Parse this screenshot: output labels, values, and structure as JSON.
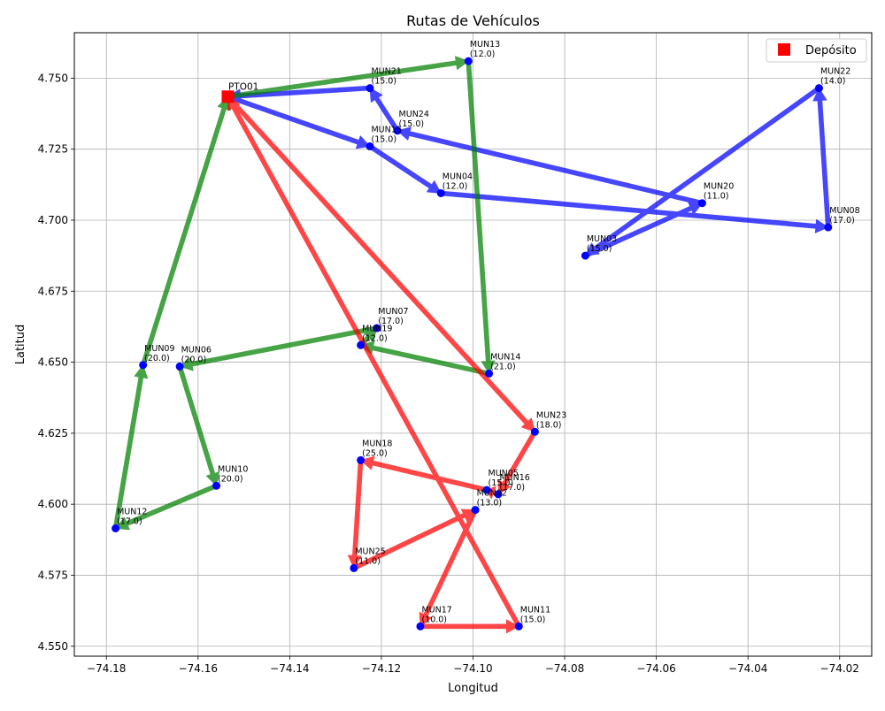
{
  "chart_data": {
    "type": "scatter",
    "title": "Rutas de Vehículos",
    "xlabel": "Longitud",
    "ylabel": "Latitud",
    "xlim": [
      -74.187,
      -74.013
    ],
    "ylim": [
      4.5465,
      4.766
    ],
    "xticks": [
      -74.18,
      -74.16,
      -74.14,
      -74.12,
      -74.1,
      -74.08,
      -74.06,
      -74.04,
      -74.02
    ],
    "xtick_labels": [
      "−74.18",
      "−74.16",
      "−74.14",
      "−74.12",
      "−74.10",
      "−74.08",
      "−74.06",
      "−74.04",
      "−74.02"
    ],
    "yticks": [
      4.55,
      4.575,
      4.6,
      4.625,
      4.65,
      4.675,
      4.7,
      4.725,
      4.75
    ],
    "ytick_labels": [
      "4.550",
      "4.575",
      "4.600",
      "4.625",
      "4.650",
      "4.675",
      "4.700",
      "4.725",
      "4.750"
    ],
    "grid": true,
    "legend": {
      "position": "top-right",
      "entries": [
        {
          "label": "Depósito",
          "color": "#ff0000",
          "marker": "square"
        }
      ]
    },
    "depot": {
      "name": "PTO01",
      "x": -74.1535,
      "y": 4.7435
    },
    "nodes": [
      {
        "name": "MUN13",
        "x": -74.101,
        "y": 4.756,
        "demand": "(12.0)"
      },
      {
        "name": "MUN21",
        "x": -74.1225,
        "y": 4.7465,
        "demand": "(15.0)"
      },
      {
        "name": "MUN24",
        "x": -74.1165,
        "y": 4.7315,
        "demand": "(15.0)"
      },
      {
        "name": "MUN15",
        "x": -74.1225,
        "y": 4.726,
        "demand": "(15.0)"
      },
      {
        "name": "MUN04",
        "x": -74.107,
        "y": 4.7095,
        "demand": "(12.0)"
      },
      {
        "name": "MUN22",
        "x": -74.0245,
        "y": 4.7465,
        "demand": "(14.0)"
      },
      {
        "name": "MUN20",
        "x": -74.05,
        "y": 4.706,
        "demand": "(11.0)"
      },
      {
        "name": "MUN08",
        "x": -74.0225,
        "y": 4.6975,
        "demand": "(17.0)"
      },
      {
        "name": "MUN03",
        "x": -74.0755,
        "y": 4.6875,
        "demand": "(15.0)"
      },
      {
        "name": "MUN07",
        "x": -74.121,
        "y": 4.662,
        "demand": "(17.0)"
      },
      {
        "name": "MUN19",
        "x": -74.1245,
        "y": 4.656,
        "demand": "(12.0)"
      },
      {
        "name": "MUN14",
        "x": -74.0965,
        "y": 4.646,
        "demand": "(21.0)"
      },
      {
        "name": "MUN09",
        "x": -74.172,
        "y": 4.649,
        "demand": "(20.0)"
      },
      {
        "name": "MUN06",
        "x": -74.164,
        "y": 4.6485,
        "demand": "(20.0)"
      },
      {
        "name": "MUN23",
        "x": -74.0865,
        "y": 4.6255,
        "demand": "(18.0)"
      },
      {
        "name": "MUN18",
        "x": -74.1245,
        "y": 4.6155,
        "demand": "(25.0)"
      },
      {
        "name": "MUN10",
        "x": -74.156,
        "y": 4.6065,
        "demand": "(20.0)"
      },
      {
        "name": "MUN05",
        "x": -74.097,
        "y": 4.605,
        "demand": "(15.0)"
      },
      {
        "name": "MUN16",
        "x": -74.0945,
        "y": 4.6035,
        "demand": "(17.0)"
      },
      {
        "name": "MUN02",
        "x": -74.0995,
        "y": 4.598,
        "demand": "(13.0)"
      },
      {
        "name": "MUN12",
        "x": -74.178,
        "y": 4.5915,
        "demand": "(17.0)"
      },
      {
        "name": "MUN25",
        "x": -74.126,
        "y": 4.5775,
        "demand": "(11.0)"
      },
      {
        "name": "MUN17",
        "x": -74.1115,
        "y": 4.557,
        "demand": "(10.0)"
      },
      {
        "name": "MUN11",
        "x": -74.09,
        "y": 4.557,
        "demand": "(15.0)"
      }
    ],
    "routes": [
      {
        "color": "#0000ff",
        "path": [
          "PTO01",
          "MUN15",
          "MUN04",
          "MUN08",
          "MUN22",
          "MUN03",
          "MUN20",
          "MUN24",
          "MUN21",
          "PTO01"
        ]
      },
      {
        "color": "#008000",
        "path": [
          "PTO01",
          "MUN13",
          "MUN14",
          "MUN19",
          "MUN07",
          "MUN06",
          "MUN10",
          "MUN12",
          "MUN09",
          "PTO01"
        ]
      },
      {
        "color": "#ff0000",
        "path": [
          "PTO01",
          "MUN23",
          "MUN16",
          "MUN05",
          "MUN18",
          "MUN25",
          "MUN02",
          "MUN17",
          "MUN11",
          "PTO01"
        ]
      }
    ]
  }
}
